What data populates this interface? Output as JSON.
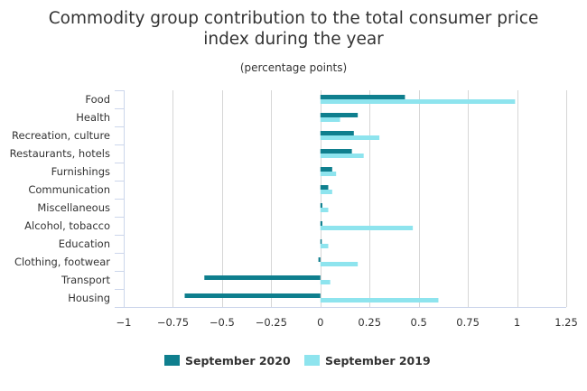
{
  "chart_data": {
    "type": "bar",
    "orientation": "horizontal",
    "title": "Commodity group contribution to the total consumer price index during the year",
    "title_lines": [
      "Commodity group contribution to the total consumer price",
      "index during the year"
    ],
    "subtitle": "(percentage points)",
    "categories": [
      "Food",
      "Health",
      "Recreation, culture",
      "Restaurants, hotels",
      "Furnishings",
      "Communication",
      "Miscellaneous",
      "Alcohol, tobacco",
      "Education",
      "Clothing, footwear",
      "Transport",
      "Housing"
    ],
    "series": [
      {
        "name": "September 2020",
        "color": "#0f7f8e",
        "values": [
          0.43,
          0.19,
          0.17,
          0.16,
          0.06,
          0.04,
          0.01,
          0.01,
          0.0,
          -0.01,
          -0.59,
          -0.69
        ]
      },
      {
        "name": "September 2019",
        "color": "#8ee4ee",
        "values": [
          0.99,
          0.1,
          0.3,
          0.22,
          0.08,
          0.06,
          0.04,
          0.47,
          0.04,
          0.19,
          0.05,
          0.6
        ]
      }
    ],
    "xlim": [
      -1,
      1.25
    ],
    "xticks": [
      -1,
      -0.75,
      -0.5,
      -0.25,
      0,
      0.25,
      0.5,
      0.75,
      1,
      1.25
    ],
    "xtick_labels": [
      "−1",
      "−0.75",
      "−0.5",
      "−0.25",
      "0",
      "0.25",
      "0.5",
      "0.75",
      "1",
      "1.25"
    ],
    "xlabel": "",
    "ylabel": "",
    "grid": "vertical",
    "legend": "bottom-center"
  }
}
